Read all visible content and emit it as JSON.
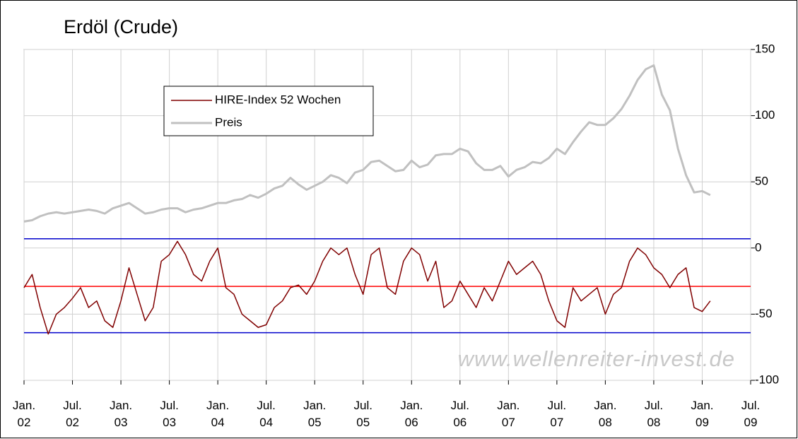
{
  "chart_data": {
    "type": "line",
    "title": "Erdöl (Crude)",
    "annotation": "www.wellenreiter-invest.de",
    "x": [
      "2002-01",
      "2002-02",
      "2002-03",
      "2002-04",
      "2002-05",
      "2002-06",
      "2002-07",
      "2002-08",
      "2002-09",
      "2002-10",
      "2002-11",
      "2002-12",
      "2003-01",
      "2003-02",
      "2003-03",
      "2003-04",
      "2003-05",
      "2003-06",
      "2003-07",
      "2003-08",
      "2003-09",
      "2003-10",
      "2003-11",
      "2003-12",
      "2004-01",
      "2004-02",
      "2004-03",
      "2004-04",
      "2004-05",
      "2004-06",
      "2004-07",
      "2004-08",
      "2004-09",
      "2004-10",
      "2004-11",
      "2004-12",
      "2005-01",
      "2005-02",
      "2005-03",
      "2005-04",
      "2005-05",
      "2005-06",
      "2005-07",
      "2005-08",
      "2005-09",
      "2005-10",
      "2005-11",
      "2005-12",
      "2006-01",
      "2006-02",
      "2006-03",
      "2006-04",
      "2006-05",
      "2006-06",
      "2006-07",
      "2006-08",
      "2006-09",
      "2006-10",
      "2006-11",
      "2006-12",
      "2007-01",
      "2007-02",
      "2007-03",
      "2007-04",
      "2007-05",
      "2007-06",
      "2007-07",
      "2007-08",
      "2007-09",
      "2007-10",
      "2007-11",
      "2007-12",
      "2008-01",
      "2008-02",
      "2008-03",
      "2008-04",
      "2008-05",
      "2008-06",
      "2008-07",
      "2008-08",
      "2008-09",
      "2008-10",
      "2008-11",
      "2008-12",
      "2009-01",
      "2009-02"
    ],
    "series": [
      {
        "name": "HIRE-Index 52 Wochen",
        "color": "#800000",
        "width": 1.5,
        "values": [
          -30,
          -20,
          -45,
          -65,
          -50,
          -45,
          -38,
          -30,
          -45,
          -40,
          -55,
          -60,
          -40,
          -15,
          -35,
          -55,
          -45,
          -10,
          -5,
          5,
          -5,
          -20,
          -25,
          -10,
          0,
          -30,
          -35,
          -50,
          -55,
          -60,
          -58,
          -45,
          -40,
          -30,
          -28,
          -35,
          -25,
          -10,
          0,
          -5,
          0,
          -20,
          -35,
          -5,
          0,
          -30,
          -35,
          -10,
          0,
          -5,
          -25,
          -10,
          -45,
          -40,
          -25,
          -35,
          -45,
          -30,
          -40,
          -25,
          -10,
          -20,
          -15,
          -10,
          -20,
          -40,
          -55,
          -60,
          -30,
          -40,
          -35,
          -30,
          -50,
          -35,
          -30,
          -10,
          0,
          -5,
          -15,
          -20,
          -30,
          -20,
          -15,
          -45,
          -48,
          -40
        ]
      },
      {
        "name": "Preis",
        "color": "#c0c0c0",
        "width": 3,
        "values": [
          20,
          21,
          24,
          26,
          27,
          26,
          27,
          28,
          29,
          28,
          26,
          30,
          32,
          34,
          30,
          26,
          27,
          29,
          30,
          30,
          27,
          29,
          30,
          32,
          34,
          34,
          36,
          37,
          40,
          38,
          41,
          45,
          47,
          53,
          48,
          44,
          47,
          50,
          55,
          53,
          49,
          57,
          59,
          65,
          66,
          62,
          58,
          59,
          66,
          61,
          63,
          70,
          71,
          71,
          75,
          73,
          64,
          59,
          59,
          62,
          54,
          59,
          61,
          65,
          64,
          68,
          75,
          71,
          80,
          88,
          95,
          93,
          93,
          98,
          105,
          115,
          127,
          135,
          138,
          116,
          104,
          75,
          55,
          42,
          43,
          40
        ]
      }
    ],
    "reference_lines": [
      {
        "value": 7,
        "color": "#0000cc"
      },
      {
        "value": -29,
        "color": "#ff0000"
      },
      {
        "value": -64,
        "color": "#0000cc"
      }
    ],
    "xlim": [
      "2002-01",
      "2009-07"
    ],
    "xticks": [
      {
        "value": "2002-01",
        "label": "Jan. 02"
      },
      {
        "value": "2002-07",
        "label": "Jul. 02"
      },
      {
        "value": "2003-01",
        "label": "Jan. 03"
      },
      {
        "value": "2003-07",
        "label": "Jul. 03"
      },
      {
        "value": "2004-01",
        "label": "Jan. 04"
      },
      {
        "value": "2004-07",
        "label": "Jul. 04"
      },
      {
        "value": "2005-01",
        "label": "Jan. 05"
      },
      {
        "value": "2005-07",
        "label": "Jul. 05"
      },
      {
        "value": "2006-01",
        "label": "Jan. 06"
      },
      {
        "value": "2006-07",
        "label": "Jul. 06"
      },
      {
        "value": "2007-01",
        "label": "Jan. 07"
      },
      {
        "value": "2007-07",
        "label": "Jul. 07"
      },
      {
        "value": "2008-01",
        "label": "Jan. 08"
      },
      {
        "value": "2008-07",
        "label": "Jul. 08"
      },
      {
        "value": "2009-01",
        "label": "Jan. 09"
      },
      {
        "value": "2009-07",
        "label": "Jul. 09"
      }
    ],
    "ylim": [
      -100,
      150
    ],
    "yticks": [
      -100,
      -50,
      0,
      50,
      100,
      150
    ],
    "grid": true,
    "legend": "upper left"
  }
}
